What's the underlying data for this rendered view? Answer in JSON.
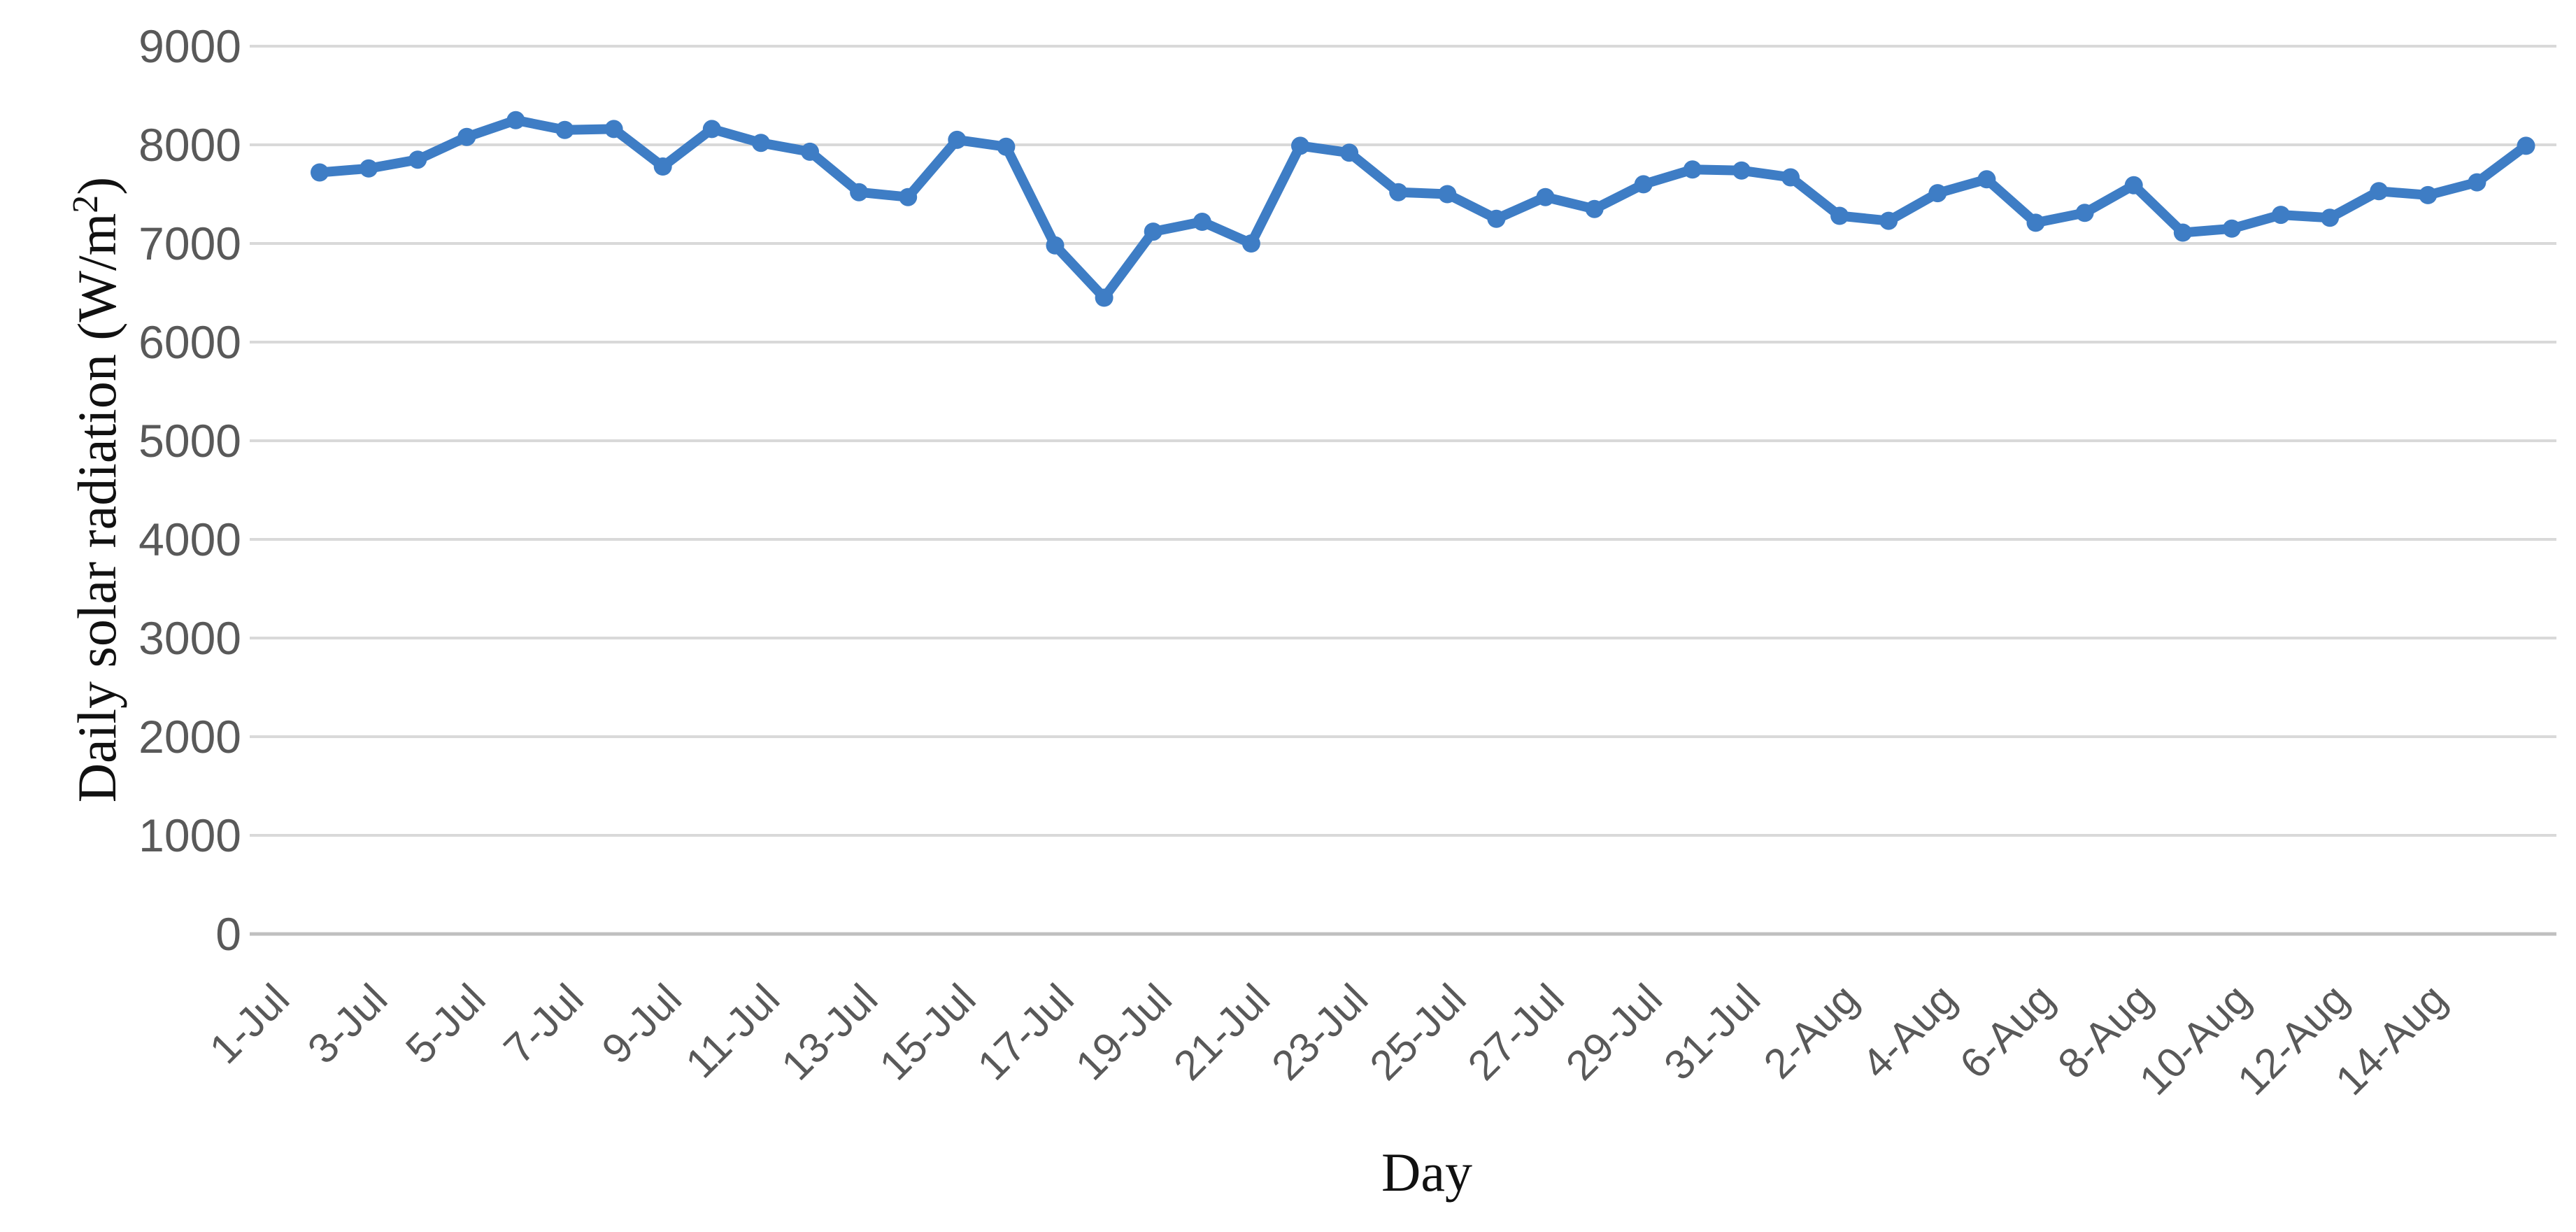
{
  "page": {
    "background": "#ffffff"
  },
  "axes": {
    "x_title": "Day",
    "y_title_main": "Daily solar radiation (W/m",
    "y_title_sup": "2",
    "y_title_close": ")"
  },
  "chart_data": {
    "type": "line",
    "title": "",
    "xlabel": "Day",
    "ylabel": "Daily solar radiation (W/m²)",
    "legend": "none",
    "grid": true,
    "marker": "circle",
    "line_color": "#3e7dc5",
    "grid_color": "#d9d9d9",
    "axis_line_color": "#c0c0c0",
    "tick_label_color": "#595959",
    "ylim": [
      0,
      9000
    ],
    "y_ticks": [
      0,
      1000,
      2000,
      3000,
      4000,
      5000,
      6000,
      7000,
      8000,
      9000
    ],
    "x_tick_step": 2,
    "x_tick_labels": [
      "1-Jul",
      "3-Jul",
      "5-Jul",
      "7-Jul",
      "9-Jul",
      "11-Jul",
      "13-Jul",
      "15-Jul",
      "17-Jul",
      "19-Jul",
      "21-Jul",
      "23-Jul",
      "25-Jul",
      "27-Jul",
      "29-Jul",
      "31-Jul",
      "2-Aug",
      "4-Aug",
      "6-Aug",
      "8-Aug",
      "10-Aug",
      "12-Aug",
      "14-Aug"
    ],
    "categories": [
      "1-Jul",
      "2-Jul",
      "3-Jul",
      "4-Jul",
      "5-Jul",
      "6-Jul",
      "7-Jul",
      "8-Jul",
      "9-Jul",
      "10-Jul",
      "11-Jul",
      "12-Jul",
      "13-Jul",
      "14-Jul",
      "15-Jul",
      "16-Jul",
      "17-Jul",
      "18-Jul",
      "19-Jul",
      "20-Jul",
      "21-Jul",
      "22-Jul",
      "23-Jul",
      "24-Jul",
      "25-Jul",
      "26-Jul",
      "27-Jul",
      "28-Jul",
      "29-Jul",
      "30-Jul",
      "31-Jul",
      "1-Aug",
      "2-Aug",
      "3-Aug",
      "4-Aug",
      "5-Aug",
      "6-Aug",
      "7-Aug",
      "8-Aug",
      "9-Aug",
      "10-Aug",
      "11-Aug",
      "12-Aug",
      "13-Aug",
      "14-Aug",
      "15-Aug"
    ],
    "values": [
      7720,
      7760,
      7850,
      8080,
      8250,
      8150,
      8160,
      7780,
      8160,
      8020,
      7930,
      7520,
      7470,
      8050,
      7980,
      6980,
      6450,
      7120,
      7220,
      7000,
      7990,
      7920,
      7520,
      7500,
      7250,
      7470,
      7350,
      7600,
      7750,
      7740,
      7670,
      7280,
      7230,
      7510,
      7650,
      7210,
      7310,
      7590,
      7110,
      7150,
      7290,
      7260,
      7530,
      7490,
      7620,
      7990
    ]
  }
}
